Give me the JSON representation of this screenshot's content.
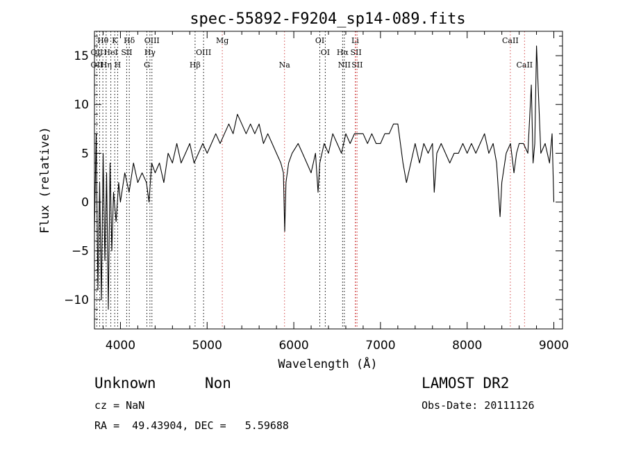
{
  "chart_data": {
    "type": "line",
    "title": "spec-55892-F9204_sp14-089.fits",
    "xlabel": "Wavelength (Å)",
    "ylabel": "Flux (relative)",
    "xlim": [
      3700,
      9100
    ],
    "ylim": [
      -13,
      17.5
    ],
    "x_ticks": [
      4000,
      5000,
      6000,
      7000,
      8000,
      9000
    ],
    "y_ticks": [
      -10,
      -5,
      0,
      5,
      10,
      15
    ],
    "grid": false,
    "series": [
      {
        "color": "#000000",
        "x": [
          3700,
          3720,
          3740,
          3760,
          3780,
          3800,
          3820,
          3840,
          3860,
          3880,
          3900,
          3920,
          3950,
          3980,
          4000,
          4050,
          4100,
          4150,
          4200,
          4250,
          4300,
          4330,
          4360,
          4400,
          4450,
          4500,
          4550,
          4600,
          4650,
          4700,
          4750,
          4800,
          4850,
          4900,
          4950,
          5000,
          5050,
          5100,
          5150,
          5200,
          5250,
          5300,
          5350,
          5400,
          5450,
          5500,
          5550,
          5600,
          5650,
          5700,
          5750,
          5800,
          5850,
          5880,
          5895,
          5910,
          5940,
          5980,
          6050,
          6100,
          6150,
          6200,
          6250,
          6280,
          6300,
          6350,
          6400,
          6450,
          6500,
          6550,
          6600,
          6650,
          6700,
          6750,
          6800,
          6850,
          6900,
          6950,
          7000,
          7050,
          7100,
          7150,
          7200,
          7230,
          7260,
          7300,
          7350,
          7400,
          7450,
          7500,
          7550,
          7600,
          7620,
          7650,
          7700,
          7750,
          7800,
          7850,
          7900,
          7950,
          8000,
          8050,
          8100,
          8150,
          8200,
          8250,
          8300,
          8340,
          8380,
          8400,
          8450,
          8500,
          8540,
          8570,
          8600,
          8650,
          8700,
          8740,
          8760,
          8780,
          8800,
          8850,
          8900,
          8950,
          8980,
          9000
        ],
        "y": [
          -3,
          7,
          -9,
          2,
          -10,
          5,
          -6,
          3,
          -11,
          4,
          -5,
          1,
          -2,
          2,
          0,
          3,
          1,
          4,
          2,
          3,
          2,
          0,
          4,
          3,
          4,
          2,
          5,
          4,
          6,
          4,
          5,
          6,
          4,
          5,
          6,
          5,
          6,
          7,
          6,
          7,
          8,
          7,
          9,
          8,
          7,
          8,
          7,
          8,
          6,
          7,
          6,
          5,
          4,
          3,
          -3,
          2,
          4,
          5,
          6,
          5,
          4,
          3,
          5,
          1,
          4,
          6,
          5,
          7,
          6,
          5,
          7,
          6,
          7,
          7,
          7,
          6,
          7,
          6,
          6,
          7,
          7,
          8,
          8,
          6,
          4,
          2,
          4,
          6,
          4,
          6,
          5,
          6,
          1,
          5,
          6,
          5,
          4,
          5,
          5,
          6,
          5,
          6,
          5,
          6,
          7,
          5,
          6,
          4,
          -1.5,
          2,
          5,
          6,
          3,
          5,
          6,
          6,
          5,
          12,
          4,
          6,
          16,
          5,
          6,
          4,
          7,
          0
        ]
      }
    ],
    "line_labels": [
      {
        "label": "Hθ",
        "row": 1,
        "x": 3797
      },
      {
        "label": "K",
        "row": 1,
        "x": 3934
      },
      {
        "label": "Hδ",
        "row": 1,
        "x": 4102
      },
      {
        "label": "OIII",
        "row": 1,
        "x": 4363
      },
      {
        "label": "Mg",
        "row": 1,
        "x": 5175
      },
      {
        "label": "OI",
        "row": 1,
        "x": 6300
      },
      {
        "label": "Li",
        "row": 1,
        "x": 6708
      },
      {
        "label": "CaII",
        "row": 1,
        "x": 8498
      },
      {
        "label": "OII",
        "row": 2,
        "x": 3727
      },
      {
        "label": "HeI",
        "row": 2,
        "x": 3889
      },
      {
        "label": "SII",
        "row": 2,
        "x": 4072
      },
      {
        "label": "Hγ",
        "row": 2,
        "x": 4340
      },
      {
        "label": "OIII",
        "row": 2,
        "x": 4959
      },
      {
        "label": "OI",
        "row": 2,
        "x": 6363
      },
      {
        "label": "Hα",
        "row": 2,
        "x": 6563
      },
      {
        "label": "SII",
        "row": 2,
        "x": 6717
      },
      {
        "label": "OII",
        "row": 3,
        "x": 3727
      },
      {
        "label": "Hη",
        "row": 3,
        "x": 3835
      },
      {
        "label": "H",
        "row": 3,
        "x": 3968
      },
      {
        "label": "G",
        "row": 3,
        "x": 4305
      },
      {
        "label": "Hβ",
        "row": 3,
        "x": 4861
      },
      {
        "label": "Na",
        "row": 3,
        "x": 5893
      },
      {
        "label": "NII",
        "row": 3,
        "x": 6583
      },
      {
        "label": "SII",
        "row": 3,
        "x": 6731
      },
      {
        "label": "CaII",
        "row": 3,
        "x": 8662
      }
    ],
    "marker_lines": [
      {
        "x": 3727,
        "color": "#000000"
      },
      {
        "x": 3760,
        "color": "#000000"
      },
      {
        "x": 3797,
        "color": "#000000"
      },
      {
        "x": 3835,
        "color": "#000000"
      },
      {
        "x": 3889,
        "color": "#000000"
      },
      {
        "x": 3934,
        "color": "#000000"
      },
      {
        "x": 3968,
        "color": "#000000"
      },
      {
        "x": 4072,
        "color": "#000000"
      },
      {
        "x": 4102,
        "color": "#000000"
      },
      {
        "x": 4305,
        "color": "#000000"
      },
      {
        "x": 4340,
        "color": "#000000"
      },
      {
        "x": 4363,
        "color": "#000000"
      },
      {
        "x": 4861,
        "color": "#000000"
      },
      {
        "x": 4959,
        "color": "#000000"
      },
      {
        "x": 5175,
        "color": "#d24a4a"
      },
      {
        "x": 5893,
        "color": "#d24a4a"
      },
      {
        "x": 6300,
        "color": "#000000"
      },
      {
        "x": 6363,
        "color": "#000000"
      },
      {
        "x": 6563,
        "color": "#000000"
      },
      {
        "x": 6583,
        "color": "#000000"
      },
      {
        "x": 6708,
        "color": "#d24a4a"
      },
      {
        "x": 6717,
        "color": "#d24a4a"
      },
      {
        "x": 6731,
        "color": "#d24a4a"
      },
      {
        "x": 8498,
        "color": "#d24a4a"
      },
      {
        "x": 8662,
        "color": "#d24a4a"
      }
    ]
  },
  "info": {
    "class": "Unknown",
    "subclass": "Non",
    "survey": "LAMOST DR2",
    "cz": "cz = NaN",
    "obs_date": "Obs-Date: 20111126",
    "coords": "RA =  49.43904, DEC =   5.59688"
  }
}
